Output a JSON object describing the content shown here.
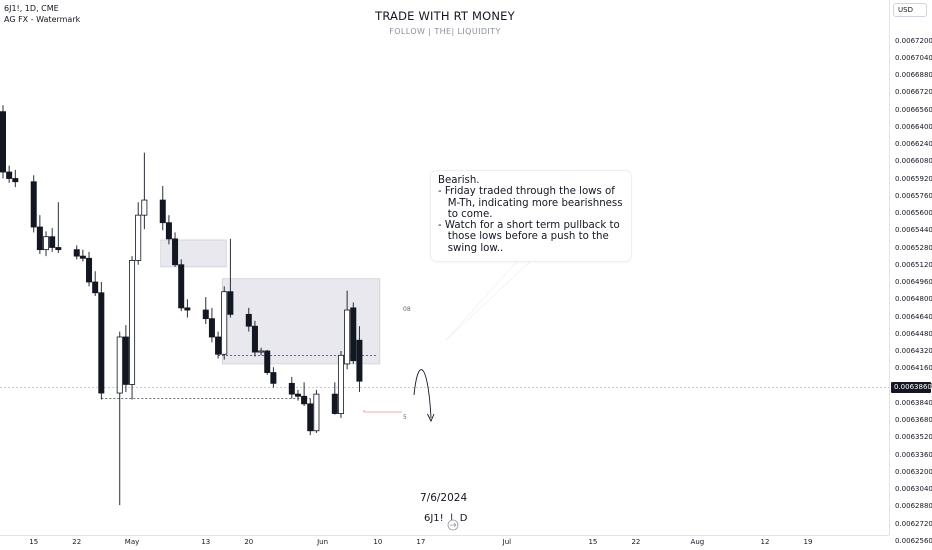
{
  "header": {
    "symbol_line": "6J1!, 1D, CME",
    "watermark_line": "AG FX - Watermark"
  },
  "watermark": {
    "title": "TRADE WITH RT MONEY",
    "subtitle": "FOLLOW   |   THE|   LIQUIDITY"
  },
  "price_axis": {
    "currency": "USD",
    "current_price": "0.0063860",
    "ticks": [
      "0.0067200",
      "0.0067040",
      "0.0066880",
      "0.0066720",
      "0.0066560",
      "0.0066400",
      "0.0066240",
      "0.0066080",
      "0.0065920",
      "0.0065760",
      "0.0065600",
      "0.0065440",
      "0.0065280",
      "0.0065120",
      "0.0064960",
      "0.0064800",
      "0.0064640",
      "0.0064480",
      "0.0064320",
      "0.0064160",
      "0.0064000",
      "0.0063840",
      "0.0063680",
      "0.0063520",
      "0.0063360",
      "0.0063200",
      "0.0063040",
      "0.0062880",
      "0.0062720",
      "0.0062560"
    ]
  },
  "time_axis": {
    "labels": [
      "15",
      "22",
      "May",
      "13",
      "20",
      "Jun",
      "10",
      "17",
      "Jul",
      "15",
      "22",
      "Aug",
      "12",
      "19"
    ]
  },
  "callout": {
    "lines": [
      "Bearish.",
      "- Friday traded through the lows of",
      "   M-Th, indicating more bearishness",
      "   to come.",
      "- Watch for a short term pullback to",
      "   those lows before a push to the",
      "   swing low.."
    ]
  },
  "bottom": {
    "date": "7/6/2024",
    "symbol": "6J1!",
    "timeframe": "D"
  },
  "markers": {
    "level_note": "08",
    "low_note": "5"
  },
  "colors": {
    "up_body": "#ffffff",
    "down_body": "#131722",
    "wick": "#131722",
    "zone_fill": "#d8d9e3",
    "background": "#ffffff"
  },
  "chart_data": {
    "type": "candlestick",
    "symbol": "6J1!",
    "timeframe": "1D",
    "currency": "USD",
    "ylim": [
      0.006248,
      0.00673
    ],
    "x_start": "2024-04-10",
    "candles": [
      {
        "d": "2024-04-10",
        "o": 0.006654,
        "h": 0.00666,
        "l": 0.006592,
        "c": 0.006598
      },
      {
        "d": "2024-04-11",
        "o": 0.006598,
        "h": 0.006604,
        "l": 0.006588,
        "c": 0.006592
      },
      {
        "d": "2024-04-12",
        "o": 0.006592,
        "h": 0.0066,
        "l": 0.006584,
        "c": 0.006589
      },
      {
        "d": "2024-04-15",
        "o": 0.006589,
        "h": 0.006595,
        "l": 0.006542,
        "c": 0.006547
      },
      {
        "d": "2024-04-16",
        "o": 0.006547,
        "h": 0.006558,
        "l": 0.006522,
        "c": 0.006526
      },
      {
        "d": "2024-04-17",
        "o": 0.006526,
        "h": 0.006543,
        "l": 0.00652,
        "c": 0.006538
      },
      {
        "d": "2024-04-18",
        "o": 0.006538,
        "h": 0.006546,
        "l": 0.006524,
        "c": 0.006528
      },
      {
        "d": "2024-04-19",
        "o": 0.006528,
        "h": 0.00657,
        "l": 0.006523,
        "c": 0.006526
      },
      {
        "d": "2024-04-22",
        "o": 0.006526,
        "h": 0.00653,
        "l": 0.006517,
        "c": 0.00652
      },
      {
        "d": "2024-04-23",
        "o": 0.00652,
        "h": 0.006526,
        "l": 0.006515,
        "c": 0.006518
      },
      {
        "d": "2024-04-24",
        "o": 0.006518,
        "h": 0.006524,
        "l": 0.006492,
        "c": 0.006496
      },
      {
        "d": "2024-04-25",
        "o": 0.006496,
        "h": 0.006506,
        "l": 0.006483,
        "c": 0.006486
      },
      {
        "d": "2024-04-26",
        "o": 0.006486,
        "h": 0.006496,
        "l": 0.006387,
        "c": 0.006393
      },
      {
        "d": "2024-04-29",
        "o": 0.006393,
        "h": 0.00645,
        "l": 0.006289,
        "c": 0.006445
      },
      {
        "d": "2024-04-30",
        "o": 0.006445,
        "h": 0.006456,
        "l": 0.006394,
        "c": 0.006401
      },
      {
        "d": "2024-05-01",
        "o": 0.006401,
        "h": 0.00652,
        "l": 0.006387,
        "c": 0.006516
      },
      {
        "d": "2024-05-02",
        "o": 0.006516,
        "h": 0.00657,
        "l": 0.006512,
        "c": 0.006558
      },
      {
        "d": "2024-05-03",
        "o": 0.006558,
        "h": 0.006616,
        "l": 0.006545,
        "c": 0.006572
      },
      {
        "d": "2024-05-06",
        "o": 0.006572,
        "h": 0.006585,
        "l": 0.006544,
        "c": 0.006551
      },
      {
        "d": "2024-05-07",
        "o": 0.006551,
        "h": 0.006558,
        "l": 0.006531,
        "c": 0.006536
      },
      {
        "d": "2024-05-08",
        "o": 0.006536,
        "h": 0.006542,
        "l": 0.00651,
        "c": 0.006512
      },
      {
        "d": "2024-05-09",
        "o": 0.006512,
        "h": 0.006517,
        "l": 0.006469,
        "c": 0.006472
      },
      {
        "d": "2024-05-10",
        "o": 0.006472,
        "h": 0.00648,
        "l": 0.006463,
        "c": 0.00647
      },
      {
        "d": "2024-05-13",
        "o": 0.00647,
        "h": 0.006482,
        "l": 0.006457,
        "c": 0.006462
      },
      {
        "d": "2024-05-14",
        "o": 0.006462,
        "h": 0.006472,
        "l": 0.00644,
        "c": 0.006445
      },
      {
        "d": "2024-05-15",
        "o": 0.006445,
        "h": 0.00645,
        "l": 0.006425,
        "c": 0.006429
      },
      {
        "d": "2024-05-16",
        "o": 0.006429,
        "h": 0.006492,
        "l": 0.006424,
        "c": 0.006487
      },
      {
        "d": "2024-05-17",
        "o": 0.006487,
        "h": 0.006536,
        "l": 0.006463,
        "c": 0.006466
      },
      {
        "d": "2024-05-20",
        "o": 0.006466,
        "h": 0.006472,
        "l": 0.00645,
        "c": 0.006455
      },
      {
        "d": "2024-05-21",
        "o": 0.006455,
        "h": 0.00646,
        "l": 0.006427,
        "c": 0.006431
      },
      {
        "d": "2024-05-22",
        "o": 0.006431,
        "h": 0.006435,
        "l": 0.006428,
        "c": 0.006432
      },
      {
        "d": "2024-05-23",
        "o": 0.006432,
        "h": 0.006433,
        "l": 0.00641,
        "c": 0.006412
      },
      {
        "d": "2024-05-24",
        "o": 0.006412,
        "h": 0.006417,
        "l": 0.006398,
        "c": 0.006402
      },
      {
        "d": "2024-05-27",
        "o": 0.006402,
        "h": 0.006408,
        "l": 0.006388,
        "c": 0.006392
      },
      {
        "d": "2024-05-28",
        "o": 0.006392,
        "h": 0.006396,
        "l": 0.006386,
        "c": 0.00639
      },
      {
        "d": "2024-05-29",
        "o": 0.00639,
        "h": 0.006403,
        "l": 0.006381,
        "c": 0.006383
      },
      {
        "d": "2024-05-30",
        "o": 0.006383,
        "h": 0.006388,
        "l": 0.006354,
        "c": 0.006358
      },
      {
        "d": "2024-05-31",
        "o": 0.006358,
        "h": 0.006396,
        "l": 0.006356,
        "c": 0.006392
      },
      {
        "d": "2024-06-03",
        "o": 0.006392,
        "h": 0.006403,
        "l": 0.006373,
        "c": 0.006374
      },
      {
        "d": "2024-06-04",
        "o": 0.006374,
        "h": 0.006432,
        "l": 0.00637,
        "c": 0.006428
      },
      {
        "d": "2024-06-05",
        "o": 0.00642,
        "h": 0.006488,
        "l": 0.006415,
        "c": 0.00647
      },
      {
        "d": "2024-06-06",
        "o": 0.006472,
        "h": 0.006477,
        "l": 0.00642,
        "c": 0.006423
      },
      {
        "d": "2024-06-07",
        "o": 0.006442,
        "h": 0.006455,
        "l": 0.006394,
        "c": 0.006404
      }
    ],
    "zones": [
      {
        "from": "2024-05-06",
        "to": "2024-05-16",
        "top": 0.006535,
        "bottom": 0.00651
      },
      {
        "from": "2024-05-16",
        "to": "2024-06-10",
        "top": 0.006499,
        "bottom": 0.00642
      }
    ],
    "levels": [
      {
        "from": "2024-04-26",
        "to": "2024-05-30",
        "price": 0.006388
      },
      {
        "from": "2024-05-15",
        "to": "2024-06-10",
        "price": 0.006428
      }
    ],
    "current_price": 0.006386,
    "projection": "down"
  }
}
